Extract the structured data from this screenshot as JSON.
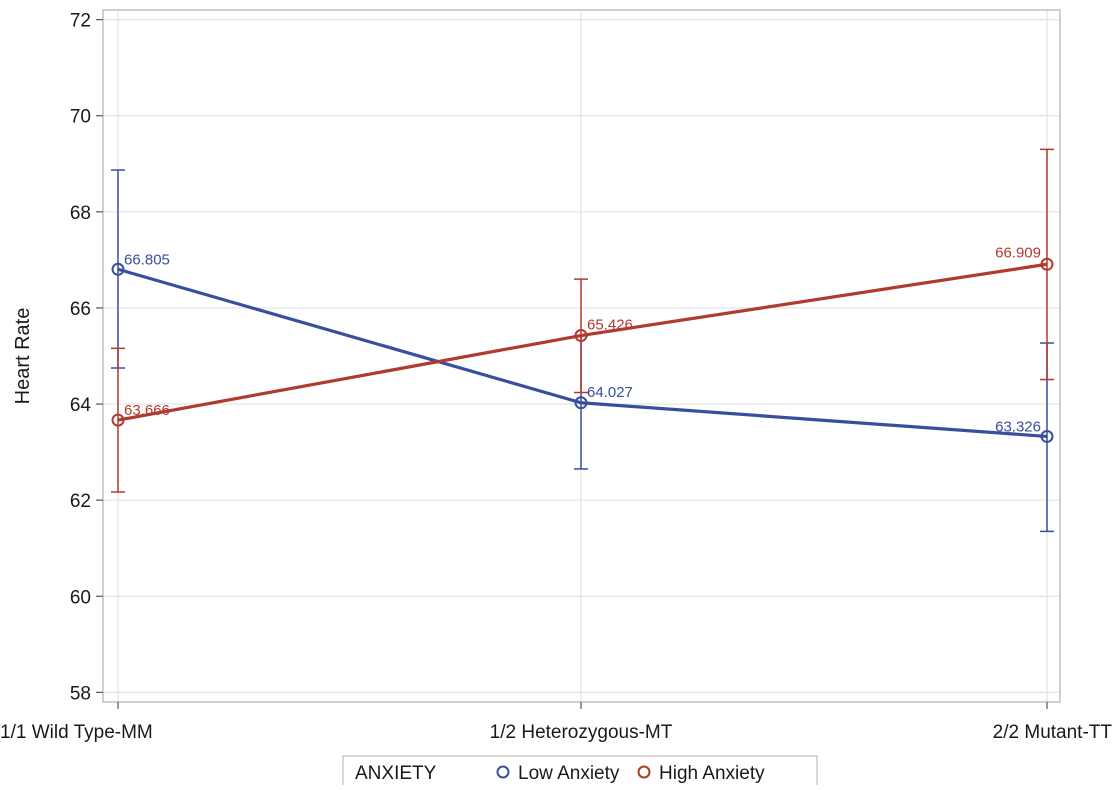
{
  "chart_data": {
    "type": "line",
    "ylabel": "Heart Rate",
    "xlabel": "",
    "categories": [
      "1/1 Wild Type-MM",
      "1/2 Heterozygous-MT",
      "2/2 Mutant-TT"
    ],
    "ylim": [
      57.8,
      72.2
    ],
    "yticks": [
      58,
      60,
      62,
      64,
      66,
      68,
      70,
      72
    ],
    "grid": true,
    "series": [
      {
        "name": "Low Anxiety",
        "color": "#3a4e9e",
        "values": [
          66.805,
          64.027,
          63.326
        ],
        "value_labels": [
          "66.805",
          "64.027",
          "63.326"
        ],
        "lower": [
          64.75,
          62.65,
          61.35
        ],
        "upper": [
          68.87,
          65.42,
          65.27
        ]
      },
      {
        "name": "High Anxiety",
        "color": "#b03a2e",
        "values": [
          63.666,
          65.426,
          66.909
        ],
        "value_labels": [
          "63.666",
          "65.426",
          "66.909"
        ],
        "lower": [
          62.17,
          64.24,
          64.51
        ],
        "upper": [
          65.16,
          66.6,
          69.3
        ]
      }
    ],
    "legend": {
      "title": "ANXIETY",
      "position": "bottom-center",
      "items": [
        "Low Anxiety",
        "High Anxiety"
      ]
    }
  }
}
